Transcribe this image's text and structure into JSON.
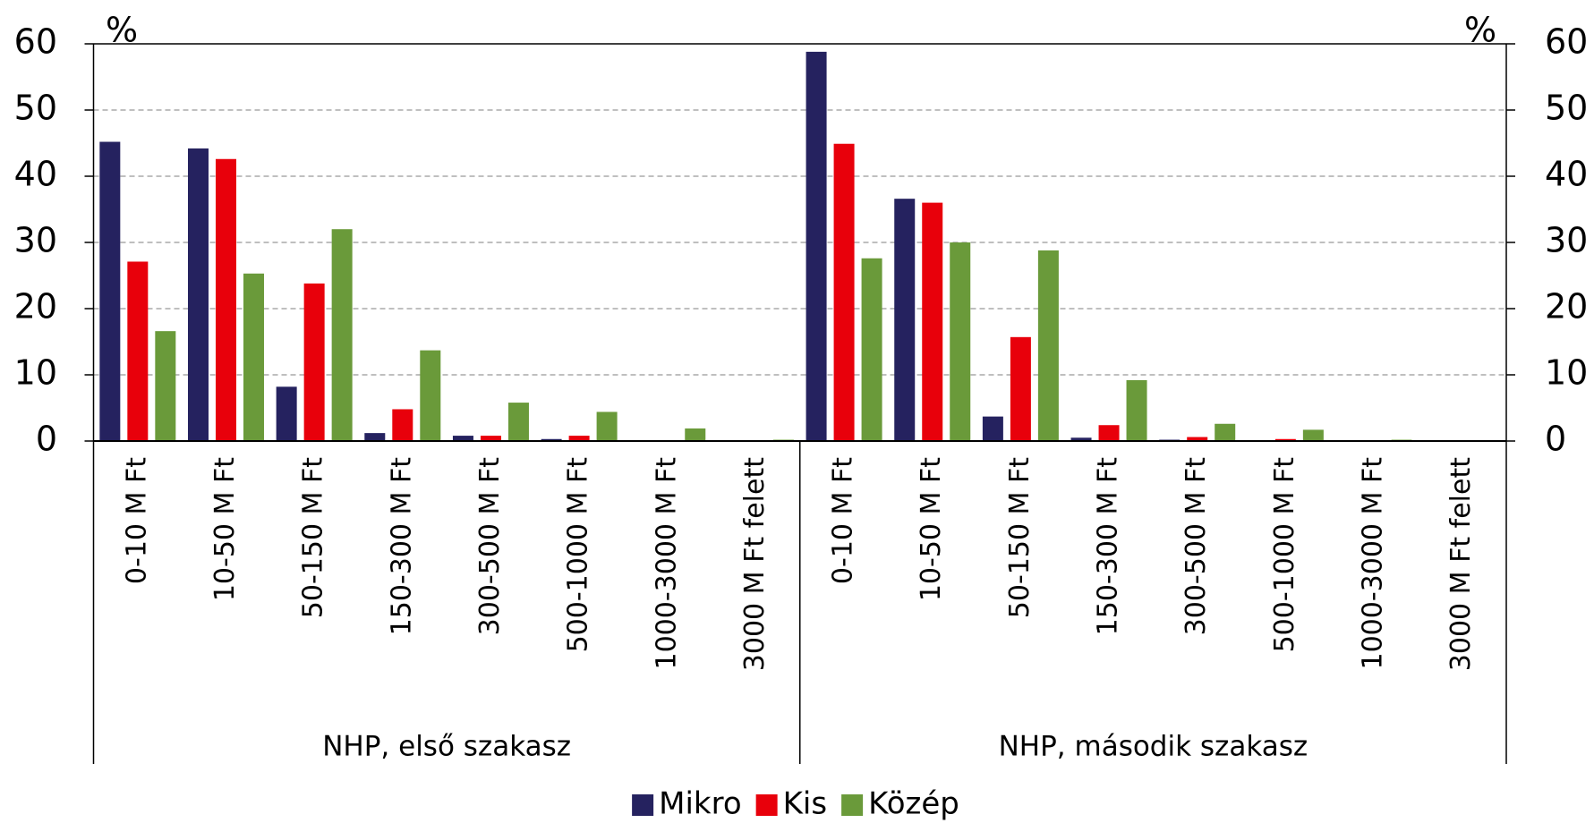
{
  "chart_data": {
    "type": "bar",
    "y_label": "%",
    "y2_label": "%",
    "groups": [
      "NHP, első szakasz",
      "NHP, második szakasz"
    ],
    "categories": [
      "0-10 M Ft",
      "10-50 M Ft",
      "50-150 M Ft",
      "150-300 M Ft",
      "300-500 M Ft",
      "500-1000 M Ft",
      "1000-3000 M Ft",
      "3000 M Ft felett",
      "0-10 M Ft",
      "10-50 M Ft",
      "50-150 M Ft",
      "150-300 M Ft",
      "300-500 M Ft",
      "500-1000 M Ft",
      "1000-3000 M Ft",
      "3000 M Ft felett"
    ],
    "series": [
      {
        "name": "Mikro",
        "color": "#25225f",
        "values": [
          45.2,
          44.2,
          8.2,
          1.2,
          0.8,
          0.3,
          0.1,
          0.0,
          58.8,
          36.6,
          3.7,
          0.5,
          0.2,
          0.0,
          0.0,
          0.0
        ]
      },
      {
        "name": "Kis",
        "color": "#e8000b",
        "values": [
          27.1,
          42.6,
          23.8,
          4.8,
          0.8,
          0.8,
          0.0,
          0.0,
          44.9,
          36.0,
          15.7,
          2.4,
          0.6,
          0.3,
          0.0,
          0.0
        ]
      },
      {
        "name": "Közép",
        "color": "#6a9a3a",
        "values": [
          16.6,
          25.3,
          32.0,
          13.7,
          5.8,
          4.4,
          1.9,
          0.2,
          27.6,
          30.0,
          28.8,
          9.2,
          2.6,
          1.7,
          0.2,
          0.0
        ]
      }
    ],
    "ylim": [
      0,
      60
    ],
    "yticks": [
      0,
      10,
      20,
      30,
      40,
      50,
      60
    ],
    "y2lim": [
      0,
      60
    ],
    "y2ticks": [
      0,
      10,
      20,
      30,
      40,
      50,
      60
    ],
    "grid": true,
    "legend": "bottom"
  }
}
